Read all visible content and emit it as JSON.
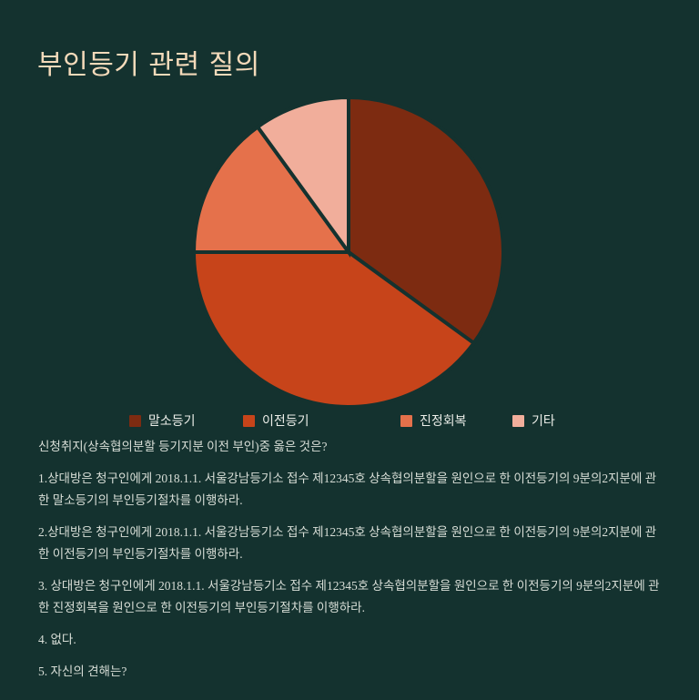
{
  "page": {
    "title": "부인등기 관련 질의"
  },
  "colors": {
    "background": "#14322F",
    "title_text": "#F4DABA",
    "legend_text": "#ECEEE9",
    "body_text": "#D8DED7"
  },
  "chart_data": {
    "type": "pie",
    "title": "부인등기 관련 질의",
    "start_angle_deg": 0,
    "direction": "clockwise",
    "legend_position": "bottom",
    "slices": [
      {
        "label": "말소등기",
        "value": 35,
        "color": "#7D2B11"
      },
      {
        "label": "이전등기",
        "value": 40,
        "color": "#C7441A"
      },
      {
        "label": "진정회복",
        "value": 15,
        "color": "#E5714B"
      },
      {
        "label": "기타",
        "value": 10,
        "color": "#F1AE9B"
      }
    ]
  },
  "question": {
    "prompt": "신청취지(상속협의분할 등기지분 이전 부인)중 옳은 것은?",
    "options": [
      "1.상대방은 청구인에게 2018.1.1. 서울강남등기소 접수 제12345호 상속협의분할을 원인으로 한 이전등기의 9분의2지분에 관한 말소등기의 부인등기절차를 이행하라.",
      "2.상대방은 청구인에게 2018.1.1. 서울강남등기소 접수 제12345호 상속협의분할을 원인으로 한 이전등기의 9분의2지분에 관한 이전등기의 부인등기절차를 이행하라.",
      "3. 상대방은 청구인에게 2018.1.1. 서울강남등기소 접수 제12345호 상속협의분할을 원인으로 한 이전등기의 9분의2지분에 관한 진정회복을 원인으로 한 이전등기의 부인등기절차를 이행하라.",
      "4. 없다.",
      "5. 자신의 견해는?"
    ]
  }
}
